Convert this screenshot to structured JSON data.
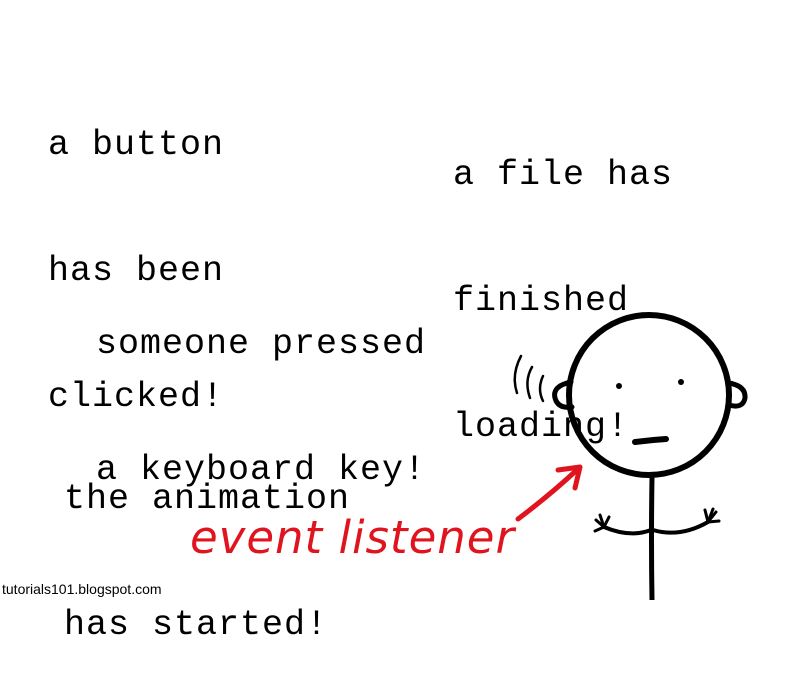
{
  "events": [
    {
      "lines": [
        "a button",
        "has been",
        "clicked!"
      ]
    },
    {
      "lines": [
        "a file has",
        "finished",
        "loading!"
      ]
    },
    {
      "lines": [
        "someone pressed",
        "a keyboard key!"
      ]
    },
    {
      "lines": [
        "the animation",
        "has started!"
      ]
    }
  ],
  "listener_label": "event listener",
  "credit": "tutorials101.blogspot.com",
  "colors": {
    "text": "#000000",
    "accent": "#e0141e",
    "background": "#ffffff"
  },
  "icons": {
    "figure": "stick-figure-icon",
    "sound_waves": "sound-waves-icon",
    "arrow": "arrow-icon"
  }
}
